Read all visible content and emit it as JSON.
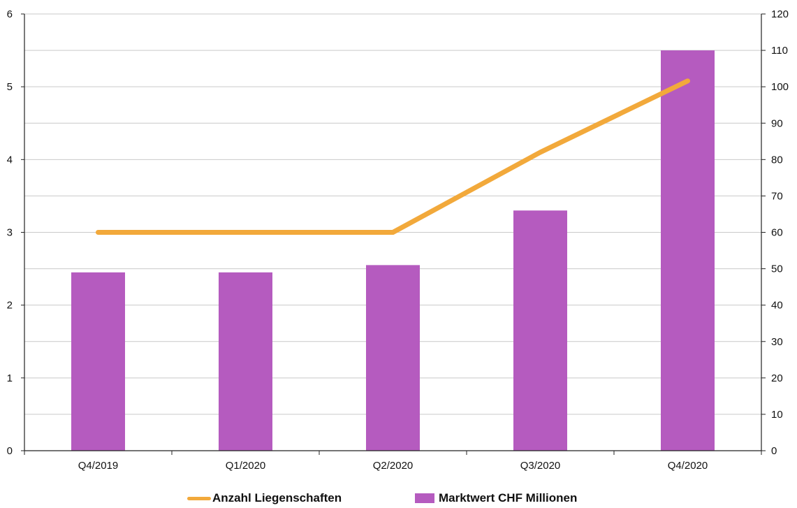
{
  "chart_data": {
    "type": "bar",
    "categories": [
      "Q4/2019",
      "Q1/2020",
      "Q2/2020",
      "Q3/2020",
      "Q4/2020"
    ],
    "series": [
      {
        "name": "Marktwert CHF Millionen",
        "type": "bar",
        "axis": "right",
        "values": [
          49,
          49,
          51,
          66,
          110
        ],
        "color": "#b55bbf"
      },
      {
        "name": "Anzahl Liegenschaften",
        "type": "line",
        "axis": "left",
        "values": [
          3,
          3,
          3,
          4.1,
          5.08
        ],
        "color": "#f2a93b"
      }
    ],
    "y_left": {
      "min": 0,
      "max": 6,
      "ticks": [
        "0",
        "1",
        "2",
        "3",
        "4",
        "5",
        "6"
      ]
    },
    "y_right": {
      "min": 0,
      "max": 120,
      "ticks": [
        "0",
        "10",
        "20",
        "30",
        "40",
        "50",
        "60",
        "70",
        "80",
        "90",
        "100",
        "110",
        "120"
      ]
    },
    "grid": true,
    "legend_position": "bottom",
    "title": "",
    "xlabel": "",
    "ylabel": ""
  },
  "legend": {
    "line_label": "Anzahl Liegenschaften",
    "bar_label": "Marktwert CHF Millionen"
  }
}
